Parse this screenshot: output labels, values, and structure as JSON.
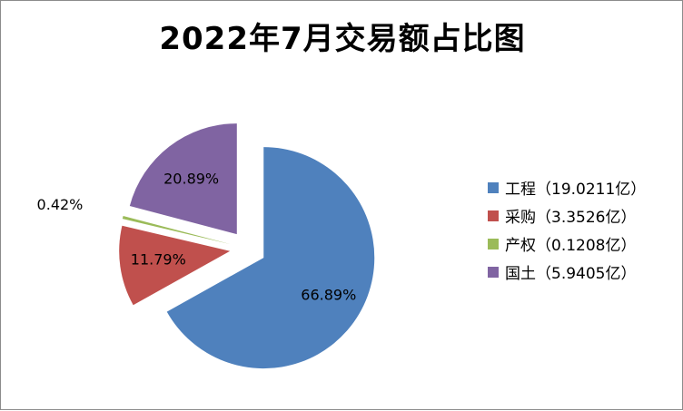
{
  "chart_data": {
    "type": "pie",
    "title": "2022年7月交易额占比图",
    "exploded": true,
    "legend_position": "right",
    "slices": [
      {
        "category": "工程",
        "legend": "工程（19.0211亿）",
        "value": 19.0211,
        "percent_label": "66.89%",
        "color": "#4F81BD"
      },
      {
        "category": "采购",
        "legend": "采购（3.3526亿）",
        "value": 3.3526,
        "percent_label": "11.79%",
        "color": "#C0504D"
      },
      {
        "category": "产权",
        "legend": "产权（0.1208亿）",
        "value": 0.1208,
        "percent_label": "0.42%",
        "color": "#9BBB59"
      },
      {
        "category": "国土",
        "legend": "国土（5.9405亿）",
        "value": 5.9405,
        "percent_label": "20.89%",
        "color": "#8064A2"
      }
    ]
  }
}
